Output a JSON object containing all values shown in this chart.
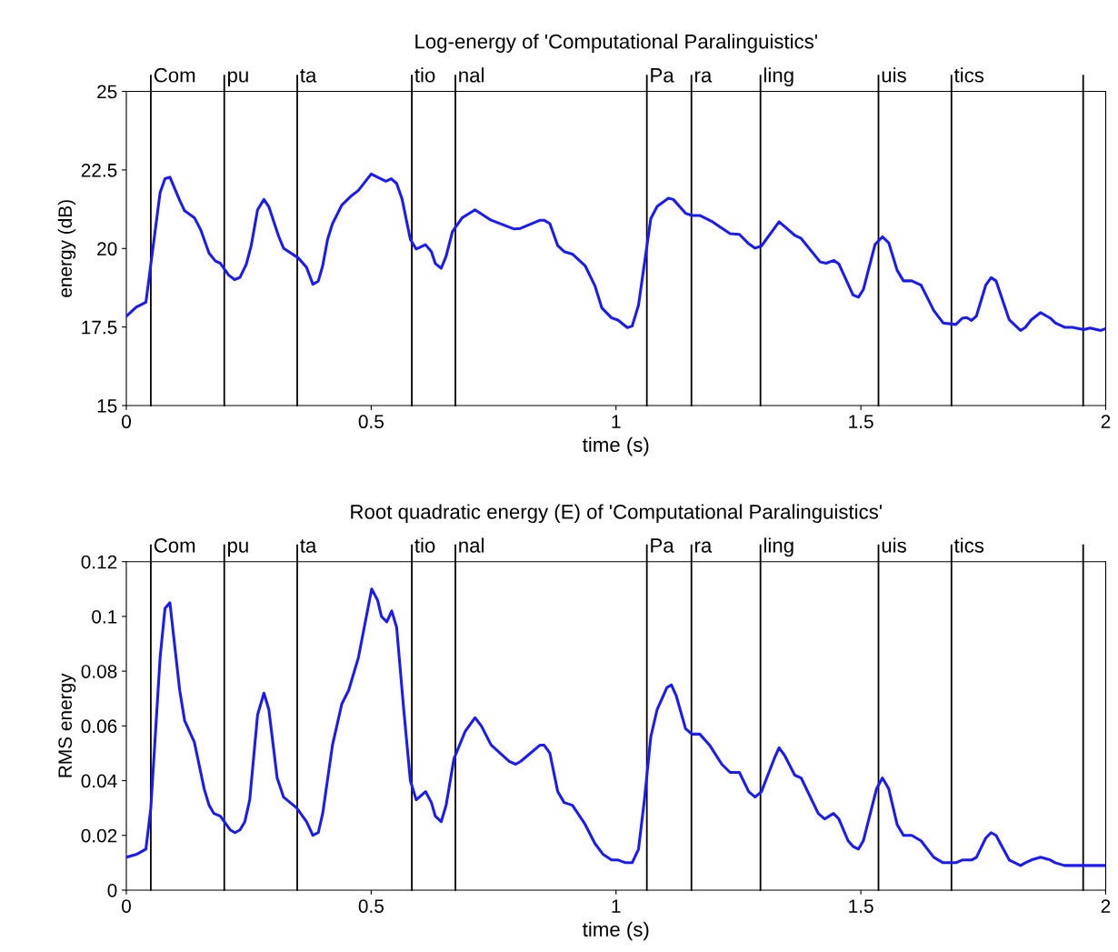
{
  "chart_data": [
    {
      "type": "line",
      "title": "Log-energy of 'Computational Paralinguistics'",
      "xlabel": "time (s)",
      "ylabel": "energy (dB)",
      "xlim": [
        0,
        2
      ],
      "xticks": [
        0,
        0.5,
        1,
        1.5,
        2
      ],
      "ylim": [
        15,
        25
      ],
      "yticks": [
        15,
        17.5,
        20,
        22.5,
        25
      ],
      "grid": false,
      "marker": "none",
      "line_style": "solid",
      "ref_lines": [
        {
          "axis": "x",
          "value": 0.05,
          "label": "Com",
          "color": "#000000"
        },
        {
          "axis": "x",
          "value": 0.2,
          "label": "pu",
          "color": "#000000"
        },
        {
          "axis": "x",
          "value": 0.349,
          "label": "ta",
          "color": "#000000"
        },
        {
          "axis": "x",
          "value": 0.583,
          "label": "tio",
          "color": "#000000"
        },
        {
          "axis": "x",
          "value": 0.672,
          "label": "nal",
          "color": "#000000"
        },
        {
          "axis": "x",
          "value": 1.063,
          "label": "Pa",
          "color": "#000000"
        },
        {
          "axis": "x",
          "value": 1.154,
          "label": "ra",
          "color": "#000000"
        },
        {
          "axis": "x",
          "value": 1.295,
          "label": "ling",
          "color": "#000000"
        },
        {
          "axis": "x",
          "value": 1.536,
          "label": "uis",
          "color": "#000000"
        },
        {
          "axis": "x",
          "value": 1.685,
          "label": "tics",
          "color": "#000000"
        },
        {
          "axis": "x",
          "value": 1.954,
          "label": null,
          "color": "#000000"
        }
      ],
      "series": [
        {
          "color": "#1a1aff",
          "x": [
            0.0,
            0.02,
            0.04,
            0.069,
            0.079,
            0.089,
            0.109,
            0.119,
            0.139,
            0.152,
            0.169,
            0.182,
            0.192,
            0.209,
            0.221,
            0.232,
            0.245,
            0.255,
            0.268,
            0.281,
            0.291,
            0.311,
            0.321,
            0.351,
            0.368,
            0.381,
            0.392,
            0.401,
            0.411,
            0.421,
            0.44,
            0.46,
            0.474,
            0.5,
            0.513,
            0.53,
            0.541,
            0.552,
            0.563,
            0.58,
            0.592,
            0.611,
            0.623,
            0.631,
            0.643,
            0.653,
            0.666,
            0.686,
            0.712,
            0.745,
            0.792,
            0.805,
            0.845,
            0.853,
            0.865,
            0.881,
            0.894,
            0.911,
            0.937,
            0.957,
            0.971,
            0.991,
            1.004,
            1.02,
            1.023,
            1.033,
            1.046,
            1.071,
            1.084,
            1.107,
            1.117,
            1.142,
            1.155,
            1.171,
            1.197,
            1.233,
            1.252,
            1.271,
            1.284,
            1.297,
            1.333,
            1.365,
            1.378,
            1.417,
            1.429,
            1.445,
            1.455,
            1.484,
            1.495,
            1.505,
            1.529,
            1.544,
            1.557,
            1.574,
            1.587,
            1.604,
            1.623,
            1.649,
            1.668,
            1.694,
            1.707,
            1.716,
            1.726,
            1.736,
            1.755,
            1.766,
            1.776,
            1.803,
            1.826,
            1.836,
            1.848,
            1.867,
            1.887,
            1.897,
            1.916,
            1.932,
            1.955,
            1.968,
            1.99,
            2.0
          ],
          "values": [
            17.84,
            18.13,
            18.29,
            21.78,
            22.22,
            22.27,
            21.53,
            21.2,
            20.98,
            20.59,
            19.85,
            19.6,
            19.53,
            19.15,
            19.01,
            19.08,
            19.5,
            20.09,
            21.23,
            21.56,
            21.33,
            20.39,
            20.01,
            19.7,
            19.4,
            18.86,
            18.96,
            19.45,
            20.29,
            20.79,
            21.38,
            21.68,
            21.85,
            22.37,
            22.27,
            22.14,
            22.22,
            22.07,
            21.58,
            20.29,
            19.98,
            20.12,
            19.9,
            19.52,
            19.37,
            19.75,
            20.54,
            20.98,
            21.23,
            20.9,
            20.62,
            20.64,
            20.9,
            20.9,
            20.79,
            20.09,
            19.9,
            19.82,
            19.45,
            18.81,
            18.11,
            17.79,
            17.72,
            17.52,
            17.48,
            17.53,
            18.2,
            20.95,
            21.34,
            21.6,
            21.56,
            21.12,
            21.05,
            21.05,
            20.85,
            20.47,
            20.45,
            20.15,
            20.01,
            20.08,
            20.85,
            20.42,
            20.32,
            19.57,
            19.53,
            19.62,
            19.51,
            18.52,
            18.45,
            18.69,
            20.13,
            20.37,
            20.18,
            19.31,
            18.97,
            18.97,
            18.83,
            18.02,
            17.63,
            17.58,
            17.78,
            17.8,
            17.71,
            17.85,
            18.83,
            19.07,
            18.97,
            17.73,
            17.39,
            17.49,
            17.73,
            17.96,
            17.78,
            17.63,
            17.49,
            17.49,
            17.42,
            17.47,
            17.39,
            17.45
          ]
        }
      ]
    },
    {
      "type": "line",
      "title": "Root quadratic energy (E) of 'Computational Paralinguistics'",
      "xlabel": "time (s)",
      "ylabel": "RMS energy",
      "xlim": [
        0,
        2
      ],
      "xticks": [
        0,
        0.5,
        1,
        1.5,
        2
      ],
      "ylim": [
        0,
        0.12
      ],
      "yticks": [
        0,
        0.02,
        0.04,
        0.06,
        0.08,
        0.1,
        0.12
      ],
      "grid": false,
      "marker": "none",
      "line_style": "solid",
      "ref_lines": [
        {
          "axis": "x",
          "value": 0.05,
          "label": "Com",
          "color": "#000000"
        },
        {
          "axis": "x",
          "value": 0.2,
          "label": "pu",
          "color": "#000000"
        },
        {
          "axis": "x",
          "value": 0.349,
          "label": "ta",
          "color": "#000000"
        },
        {
          "axis": "x",
          "value": 0.583,
          "label": "tio",
          "color": "#000000"
        },
        {
          "axis": "x",
          "value": 0.672,
          "label": "nal",
          "color": "#000000"
        },
        {
          "axis": "x",
          "value": 1.063,
          "label": "Pa",
          "color": "#000000"
        },
        {
          "axis": "x",
          "value": 1.154,
          "label": "ra",
          "color": "#000000"
        },
        {
          "axis": "x",
          "value": 1.295,
          "label": "ling",
          "color": "#000000"
        },
        {
          "axis": "x",
          "value": 1.536,
          "label": "uis",
          "color": "#000000"
        },
        {
          "axis": "x",
          "value": 1.685,
          "label": "tics",
          "color": "#000000"
        },
        {
          "axis": "x",
          "value": 1.954,
          "label": null,
          "color": "#000000"
        }
      ],
      "series": [
        {
          "color": "#1a1aff",
          "x": [
            0.0,
            0.02,
            0.04,
            0.05,
            0.069,
            0.079,
            0.089,
            0.109,
            0.119,
            0.139,
            0.159,
            0.169,
            0.179,
            0.192,
            0.212,
            0.222,
            0.232,
            0.242,
            0.252,
            0.268,
            0.281,
            0.291,
            0.308,
            0.321,
            0.348,
            0.368,
            0.381,
            0.392,
            0.401,
            0.421,
            0.44,
            0.454,
            0.474,
            0.501,
            0.513,
            0.521,
            0.532,
            0.542,
            0.552,
            0.566,
            0.58,
            0.592,
            0.611,
            0.623,
            0.631,
            0.643,
            0.653,
            0.669,
            0.692,
            0.712,
            0.725,
            0.745,
            0.782,
            0.795,
            0.805,
            0.845,
            0.853,
            0.865,
            0.881,
            0.894,
            0.911,
            0.937,
            0.957,
            0.974,
            0.991,
            1.004,
            1.02,
            1.023,
            1.033,
            1.046,
            1.058,
            1.071,
            1.084,
            1.104,
            1.113,
            1.123,
            1.142,
            1.155,
            1.171,
            1.191,
            1.216,
            1.233,
            1.252,
            1.271,
            1.284,
            1.297,
            1.323,
            1.333,
            1.345,
            1.365,
            1.378,
            1.413,
            1.426,
            1.444,
            1.455,
            1.474,
            1.484,
            1.495,
            1.505,
            1.532,
            1.544,
            1.557,
            1.574,
            1.587,
            1.604,
            1.623,
            1.649,
            1.668,
            1.694,
            1.707,
            1.716,
            1.726,
            1.736,
            1.755,
            1.766,
            1.776,
            1.803,
            1.826,
            1.836,
            1.848,
            1.867,
            1.887,
            1.897,
            1.916,
            1.932,
            1.955,
            1.968,
            1.99,
            2.0
          ],
          "values": [
            0.012,
            0.013,
            0.015,
            0.03,
            0.085,
            0.103,
            0.105,
            0.073,
            0.062,
            0.054,
            0.037,
            0.031,
            0.028,
            0.027,
            0.022,
            0.021,
            0.022,
            0.025,
            0.033,
            0.064,
            0.072,
            0.066,
            0.041,
            0.034,
            0.03,
            0.025,
            0.02,
            0.021,
            0.028,
            0.053,
            0.068,
            0.073,
            0.085,
            0.11,
            0.106,
            0.1,
            0.098,
            0.102,
            0.096,
            0.067,
            0.04,
            0.033,
            0.036,
            0.032,
            0.027,
            0.025,
            0.031,
            0.048,
            0.058,
            0.063,
            0.06,
            0.053,
            0.047,
            0.046,
            0.047,
            0.053,
            0.053,
            0.05,
            0.036,
            0.032,
            0.031,
            0.024,
            0.017,
            0.013,
            0.011,
            0.011,
            0.01,
            0.01,
            0.01,
            0.015,
            0.033,
            0.056,
            0.066,
            0.074,
            0.075,
            0.071,
            0.059,
            0.057,
            0.057,
            0.053,
            0.046,
            0.043,
            0.043,
            0.036,
            0.034,
            0.036,
            0.048,
            0.052,
            0.049,
            0.042,
            0.041,
            0.028,
            0.026,
            0.028,
            0.026,
            0.018,
            0.016,
            0.015,
            0.018,
            0.037,
            0.041,
            0.037,
            0.024,
            0.02,
            0.02,
            0.018,
            0.012,
            0.01,
            0.01,
            0.011,
            0.011,
            0.011,
            0.012,
            0.019,
            0.021,
            0.02,
            0.011,
            0.009,
            0.01,
            0.011,
            0.012,
            0.011,
            0.01,
            0.009,
            0.009,
            0.009,
            0.009,
            0.009,
            0.009
          ]
        }
      ]
    }
  ]
}
